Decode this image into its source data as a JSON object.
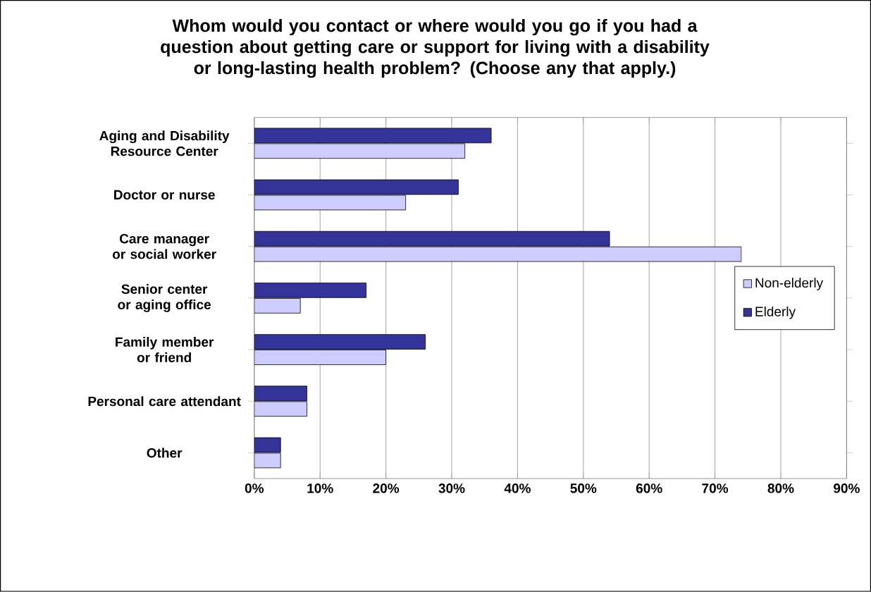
{
  "chart_data": {
    "type": "bar",
    "orientation": "horizontal",
    "title": "Whom would you contact or where would you go if you had a question about getting care or support for living with a disability or long-lasting health problem?  (Choose any that apply.)",
    "categories": [
      "Aging and Disability Resource Center",
      "Doctor or nurse",
      "Care manager or social worker",
      "Senior center or aging office",
      "Family member or friend",
      "Personal care attendant",
      "Other"
    ],
    "series": [
      {
        "name": "Non-elderly",
        "color": "#ccccff",
        "values": [
          32,
          23,
          74,
          7,
          20,
          8,
          4
        ]
      },
      {
        "name": "Elderly",
        "color": "#333399",
        "values": [
          36,
          31,
          54,
          17,
          26,
          8,
          4
        ]
      }
    ],
    "xlim": [
      0,
      90
    ],
    "xticks": [
      {
        "value": 0,
        "label": "0%"
      },
      {
        "value": 10,
        "label": "10%"
      },
      {
        "value": 20,
        "label": "20%"
      },
      {
        "value": 30,
        "label": "30%"
      },
      {
        "value": 40,
        "label": "40%"
      },
      {
        "value": 50,
        "label": "50%"
      },
      {
        "value": 60,
        "label": "60%"
      },
      {
        "value": 70,
        "label": "70%"
      },
      {
        "value": 80,
        "label": "80%"
      },
      {
        "value": 90,
        "label": "90%"
      }
    ],
    "grid": "x",
    "legend": "right"
  }
}
